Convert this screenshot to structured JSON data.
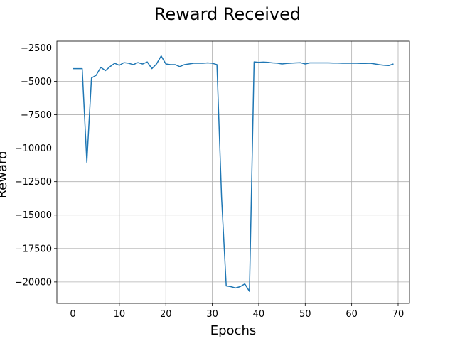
{
  "chart_data": {
    "type": "line",
    "title": "Reward Received",
    "xlabel": "Epochs",
    "ylabel": "Reward",
    "xlim": [
      -3.45,
      72.45
    ],
    "ylim": [
      -21600,
      -2000
    ],
    "xticks": [
      0,
      10,
      20,
      30,
      40,
      50,
      60,
      70
    ],
    "yticks": [
      -20000,
      -17500,
      -15000,
      -12500,
      -10000,
      -7500,
      -5000,
      -2500
    ],
    "ytick_labels": [
      "−20000",
      "−17500",
      "−15000",
      "−12500",
      "−10000",
      "−7500",
      "−5000",
      "−2500"
    ],
    "grid": true,
    "series": [
      {
        "color": "#1f77b4",
        "x": [
          0,
          1,
          2,
          3,
          4,
          5,
          6,
          7,
          8,
          9,
          10,
          11,
          12,
          13,
          14,
          15,
          16,
          17,
          18,
          19,
          20,
          21,
          22,
          23,
          24,
          25,
          26,
          27,
          28,
          29,
          30,
          31,
          32,
          33,
          34,
          35,
          36,
          37,
          38,
          39,
          40,
          41,
          42,
          43,
          44,
          45,
          46,
          47,
          48,
          49,
          50,
          51,
          52,
          53,
          54,
          55,
          56,
          57,
          58,
          59,
          60,
          61,
          62,
          63,
          64,
          65,
          66,
          67,
          68,
          69
        ],
        "values": [
          -4050,
          -4050,
          -4050,
          -11050,
          -4750,
          -4550,
          -3950,
          -4200,
          -3900,
          -3650,
          -3800,
          -3600,
          -3650,
          -3750,
          -3600,
          -3700,
          -3550,
          -4050,
          -3700,
          -3100,
          -3700,
          -3750,
          -3750,
          -3900,
          -3750,
          -3700,
          -3650,
          -3650,
          -3650,
          -3620,
          -3650,
          -3750,
          -13700,
          -20300,
          -20350,
          -20450,
          -20350,
          -20150,
          -20700,
          -3550,
          -3580,
          -3560,
          -3580,
          -3620,
          -3640,
          -3700,
          -3660,
          -3640,
          -3620,
          -3610,
          -3700,
          -3620,
          -3620,
          -3620,
          -3620,
          -3620,
          -3630,
          -3630,
          -3650,
          -3650,
          -3650,
          -3650,
          -3660,
          -3660,
          -3650,
          -3700,
          -3760,
          -3800,
          -3820,
          -3700
        ]
      }
    ]
  }
}
